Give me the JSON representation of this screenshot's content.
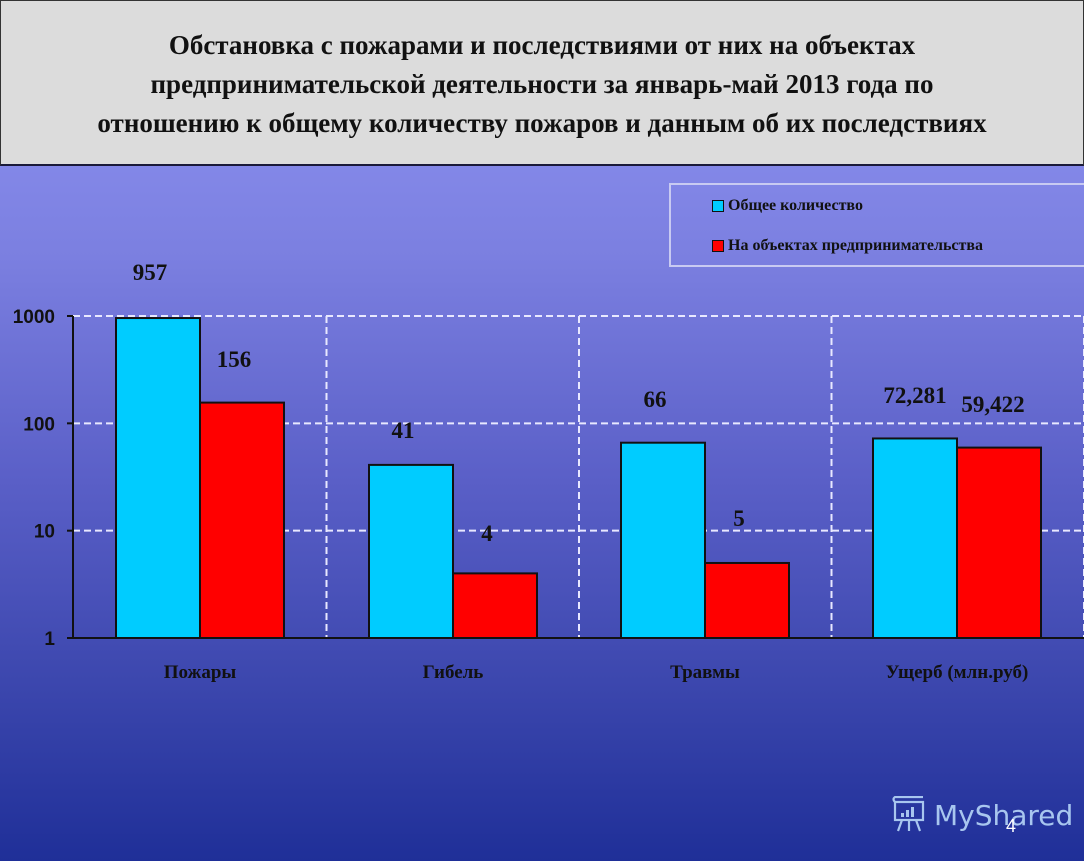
{
  "slide": {
    "title": "Обстановка с пожарами и последствиями от них на объектах предпринимательской деятельности за январь-май 2013 года по отношению к общему количеству пожаров и данным об их последствиях",
    "title_lines": [
      "Обстановка с пожарами и последствиями от них на объектах",
      "предпринимательской деятельности за январь-май 2013 года по",
      "отношению к общему количеству пожаров и данным об их последствиях"
    ],
    "page_number": "4",
    "watermark": "MyShared"
  },
  "legend": {
    "items": [
      {
        "label": "Общее количество",
        "color": "#00ccff"
      },
      {
        "label": "На объектах предпринимательства",
        "color": "#ff0000"
      }
    ]
  },
  "colors": {
    "series_total": "#00ccff",
    "series_business": "#ff0000",
    "title_bg": "#dcdcdc",
    "grid": "#e8e8ff"
  },
  "chart_data": {
    "type": "bar",
    "title": "Обстановка с пожарами и последствиями от них на объектах предпринимательской деятельности за январь-май 2013 года по отношению к общему количеству пожаров и данным об их последствиях",
    "categories": [
      "Пожары",
      "Гибель",
      "Травмы",
      "Ущерб (млн.руб)"
    ],
    "series": [
      {
        "name": "Общее количество",
        "values": [
          957,
          41,
          66,
          72.281
        ],
        "labels": [
          "957",
          "41",
          "66",
          "72,281"
        ]
      },
      {
        "name": "На объектах предпринимательства",
        "values": [
          156,
          4,
          5,
          59.422
        ],
        "labels": [
          "156",
          "4",
          "5",
          "59,422"
        ]
      }
    ],
    "xlabel": "",
    "ylabel": "",
    "yscale": "log",
    "ylim": [
      1,
      1000
    ],
    "yticks": [
      "1",
      "10",
      "100",
      "1000"
    ],
    "grid": true,
    "legend_position": "top-right"
  }
}
